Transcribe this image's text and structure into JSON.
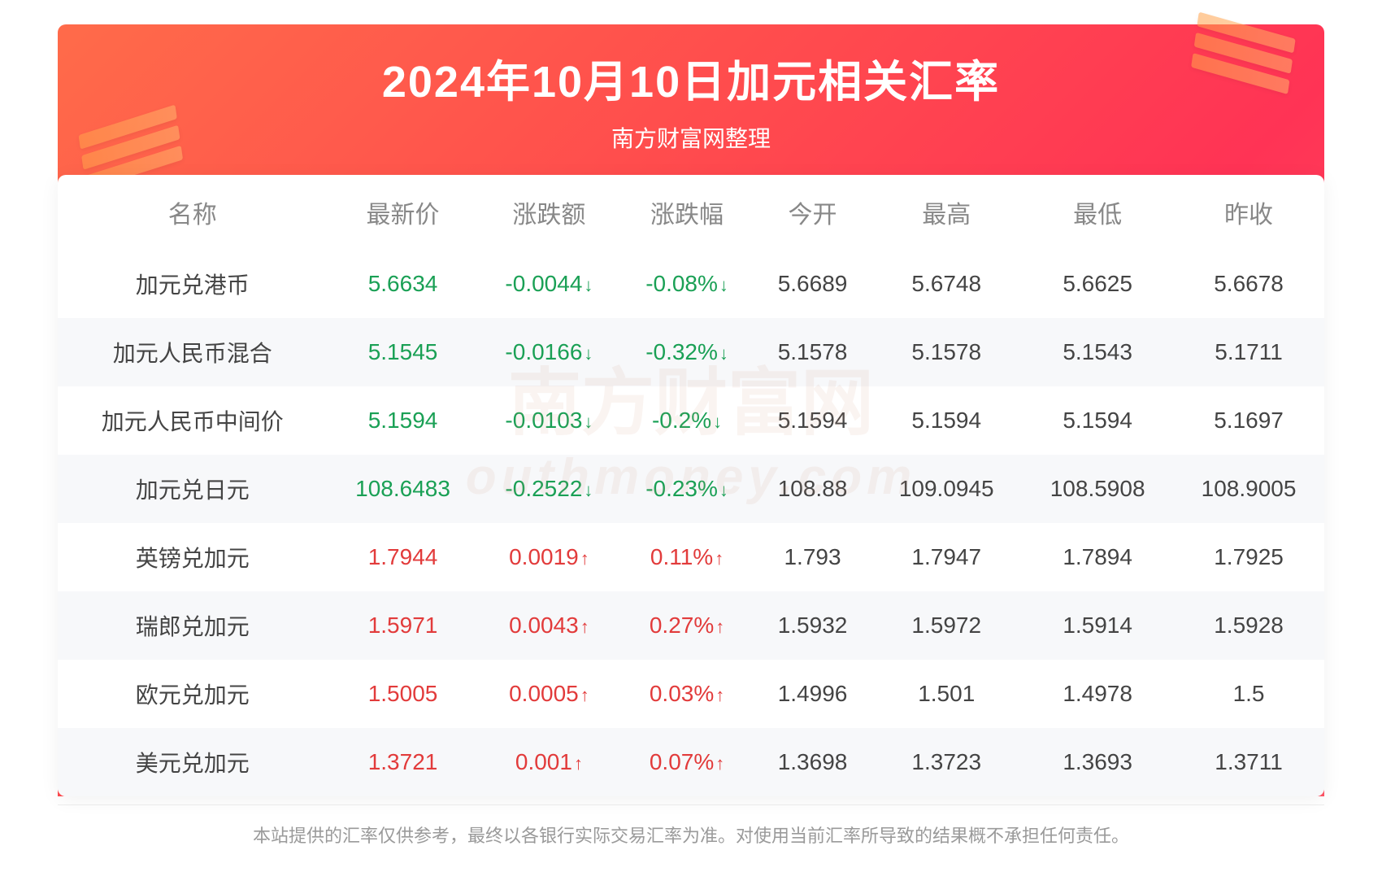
{
  "style": {
    "banner_gradient": [
      "#ff6b4a",
      "#ff4d4d",
      "#ff3355",
      "#ff5566"
    ],
    "title_color": "#ffffff",
    "title_fontsize": 54,
    "subtitle_fontsize": 28,
    "header_text_color": "#888888",
    "body_text_color": "#444444",
    "alt_row_bg": "#f7f8fa",
    "up_color": "#e23b3b",
    "down_color": "#1aa055",
    "cell_fontsize": 28,
    "disclaimer_color": "#9a9a9a",
    "border_radius": 10,
    "decor_bar_color": [
      "#ffa24a",
      "#ffb36b"
    ]
  },
  "title": "2024年10月10日加元相关汇率",
  "subtitle": "南方财富网整理",
  "watermark_main": "南方财富网",
  "watermark_sub": "outhmoney.com",
  "disclaimer": "本站提供的汇率仅供参考，最终以各银行实际交易汇率为准。对使用当前汇率所导致的结果概不承担任何责任。",
  "columns": [
    "名称",
    "最新价",
    "涨跌额",
    "涨跌幅",
    "今开",
    "最高",
    "最低",
    "昨收"
  ],
  "rows": [
    {
      "name": "加元兑港币",
      "last": "5.6634",
      "chg": "-0.0044",
      "pct": "-0.08%",
      "dir": "down",
      "open": "5.6689",
      "high": "5.6748",
      "low": "5.6625",
      "prev": "5.6678"
    },
    {
      "name": "加元人民币混合",
      "last": "5.1545",
      "chg": "-0.0166",
      "pct": "-0.32%",
      "dir": "down",
      "open": "5.1578",
      "high": "5.1578",
      "low": "5.1543",
      "prev": "5.1711"
    },
    {
      "name": "加元人民币中间价",
      "last": "5.1594",
      "chg": "-0.0103",
      "pct": "-0.2%",
      "dir": "down",
      "open": "5.1594",
      "high": "5.1594",
      "low": "5.1594",
      "prev": "5.1697"
    },
    {
      "name": "加元兑日元",
      "last": "108.6483",
      "chg": "-0.2522",
      "pct": "-0.23%",
      "dir": "down",
      "open": "108.88",
      "high": "109.0945",
      "low": "108.5908",
      "prev": "108.9005"
    },
    {
      "name": "英镑兑加元",
      "last": "1.7944",
      "chg": "0.0019",
      "pct": "0.11%",
      "dir": "up",
      "open": "1.793",
      "high": "1.7947",
      "low": "1.7894",
      "prev": "1.7925"
    },
    {
      "name": "瑞郎兑加元",
      "last": "1.5971",
      "chg": "0.0043",
      "pct": "0.27%",
      "dir": "up",
      "open": "1.5932",
      "high": "1.5972",
      "low": "1.5914",
      "prev": "1.5928"
    },
    {
      "name": "欧元兑加元",
      "last": "1.5005",
      "chg": "0.0005",
      "pct": "0.03%",
      "dir": "up",
      "open": "1.4996",
      "high": "1.501",
      "low": "1.4978",
      "prev": "1.5"
    },
    {
      "name": "美元兑加元",
      "last": "1.3721",
      "chg": "0.001",
      "pct": "0.07%",
      "dir": "up",
      "open": "1.3698",
      "high": "1.3723",
      "low": "1.3693",
      "prev": "1.3711"
    }
  ]
}
